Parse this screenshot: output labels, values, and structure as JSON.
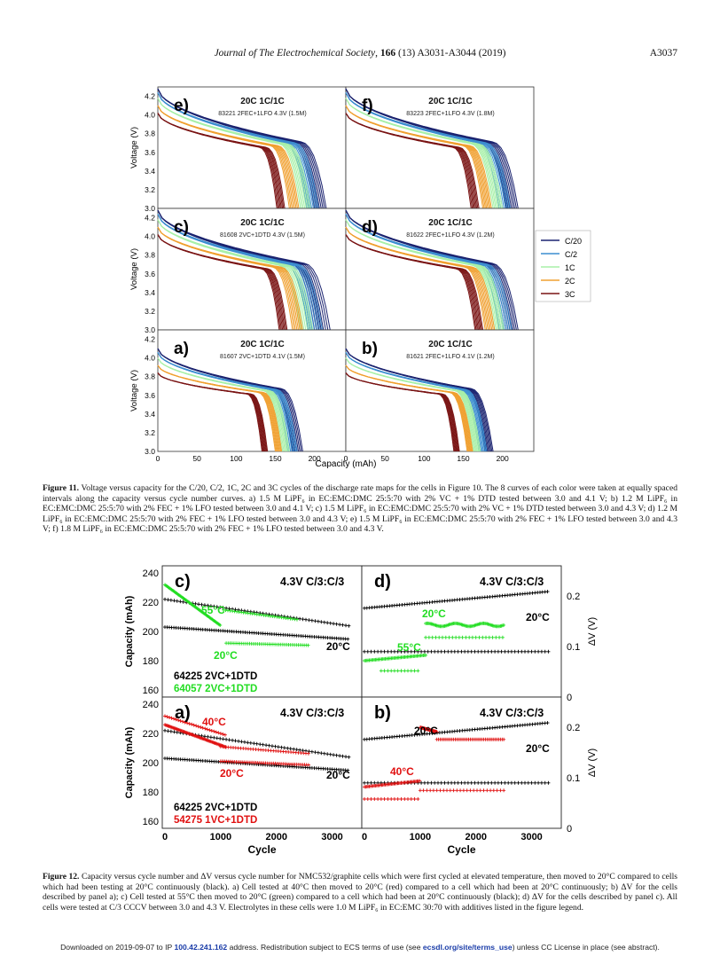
{
  "header": {
    "journal": "Journal of The Electrochemical Society",
    "volume": "166",
    "issue": "(13) A3031-A3044 (2019)",
    "page": "A3037"
  },
  "figure11": {
    "legend": [
      "C/20",
      "C/2",
      "1C",
      "2C",
      "3C"
    ],
    "legend_colors": [
      "#1c2470",
      "#3c8ed0",
      "#a8f0a8",
      "#f0a030",
      "#7a1414"
    ],
    "ylabel": "Voltage (V)",
    "xlabel": "Capacity (mAh)",
    "ytick_labels": [
      "3.0",
      "3.2",
      "3.4",
      "3.6",
      "3.8",
      "4.0",
      "4.2"
    ],
    "xtick_labels": [
      "0",
      "50",
      "100",
      "150",
      "200"
    ],
    "panels": [
      {
        "letter": "e)",
        "title": "20C 1C/1C",
        "subtitle": "83221 2FEC+1LFO 4.3V (1.5M)"
      },
      {
        "letter": "f)",
        "title": "20C 1C/1C",
        "subtitle": "83223 2FEC+1LFO 4.3V (1.8M)"
      },
      {
        "letter": "c)",
        "title": "20C 1C/1C",
        "subtitle": "81608 2VC+1DTD 4.3V (1.5M)"
      },
      {
        "letter": "d)",
        "title": "20C 1C/1C",
        "subtitle": "81622 2FEC+1LFO 4.3V (1.2M)"
      },
      {
        "letter": "a)",
        "title": "20C 1C/1C",
        "subtitle": "81607 2VC+1DTD 4.1V (1.5M)"
      },
      {
        "letter": "b)",
        "title": "20C 1C/1C",
        "subtitle": "81621 2FEC+1LFO 4.1V (1.2M)"
      }
    ],
    "caption_label": "Figure 11.",
    "caption_text": "Voltage versus capacity for the C/20, C/2, 1C, 2C and 3C cycles of the discharge rate maps for the cells in Figure 10. The 8 curves of each color were taken at equally spaced intervals along the capacity versus cycle number curves. a) 1.5 M LiPF₆ in EC:EMC:DMC 25:5:70 with 2% VC + 1% DTD tested between 3.0 and 4.1 V; b) 1.2 M LiPF₆ in EC:EMC:DMC 25:5:70 with 2% FEC + 1% LFO tested between 3.0 and 4.1 V; c) 1.5 M LiPF₆ in EC:EMC:DMC 25:5:70 with 2% VC + 1% DTD tested between 3.0 and 4.3 V; d) 1.2 M LiPF₆ in EC:EMC:DMC 25:5:70 with 2% FEC + 1% LFO tested between 3.0 and 4.3 V; e) 1.5 M LiPF₆ in EC:EMC:DMC 25:5:70 with 2% FEC + 1% LFO tested between 3.0 and 4.3 V; f) 1.8 M LiPF₆ in EC:EMC:DMC 25:5:70 with 2% FEC + 1% LFO tested between 3.0 and 4.3 V."
  },
  "figure12": {
    "ylabel": "Capacity (mAh)",
    "ylabel_right": "ΔV (V)",
    "xlabel": "Cycle",
    "ytick_labels": [
      "160",
      "180",
      "200",
      "220",
      "240"
    ],
    "rtick_labels": [
      "0",
      "0.1",
      "0.2"
    ],
    "xtick_labels": [
      "0",
      "1000",
      "2000",
      "3000"
    ],
    "panels": [
      {
        "letter": "c)",
        "title": "4.3V C/3:C/3",
        "labels": [
          "55°C",
          "20°C",
          "20°C"
        ],
        "legend": [
          "64225 2VC+1DTD",
          "64057 2VC+1DTD"
        ]
      },
      {
        "letter": "d)",
        "title": "4.3V C/3:C/3",
        "labels": [
          "20°C",
          "55°C",
          "20°C"
        ]
      },
      {
        "letter": "a)",
        "title": "4.3V C/3:C/3",
        "labels": [
          "40°C",
          "20°C",
          "20°C"
        ],
        "legend": [
          "64225 2VC+1DTD",
          "54275 1VC+1DTD"
        ]
      },
      {
        "letter": "b)",
        "title": "4.3V C/3:C/3",
        "labels": [
          "20°C",
          "40°C",
          "20°C"
        ]
      }
    ],
    "colors": {
      "black": "#000000",
      "green": "#22dd22",
      "red": "#e01010"
    },
    "caption_label": "Figure 12.",
    "caption_text": "Capacity versus cycle number and ΔV versus cycle number for NMC532/graphite cells which were first cycled at elevated temperature, then moved to 20°C compared to cells which had been testing at 20°C continuously (black). a) Cell tested at 40°C then moved to 20°C (red) compared to a cell which had been at 20°C continuously; b) ΔV for the cells described by panel a); c) Cell tested at 55°C then moved to 20°C (green) compared to a cell which had been at 20°C continuously (black); d) ΔV for the cells described by panel c). All cells were tested at C/3 CCCV between 3.0 and 4.3 V. Electrolytes in these cells were 1.0 M LiPF₆ in EC:EMC 30:70 with additives listed in the figure legend."
  },
  "footer": {
    "prefix": "Downloaded on 2019-09-07 to IP ",
    "ip": "100.42.241.162",
    "middle": " address. Redistribution subject to ECS terms of use (see ",
    "link": "ecsdl.org/site/terms_use",
    "suffix": ") unless CC License in place (see abstract)."
  }
}
